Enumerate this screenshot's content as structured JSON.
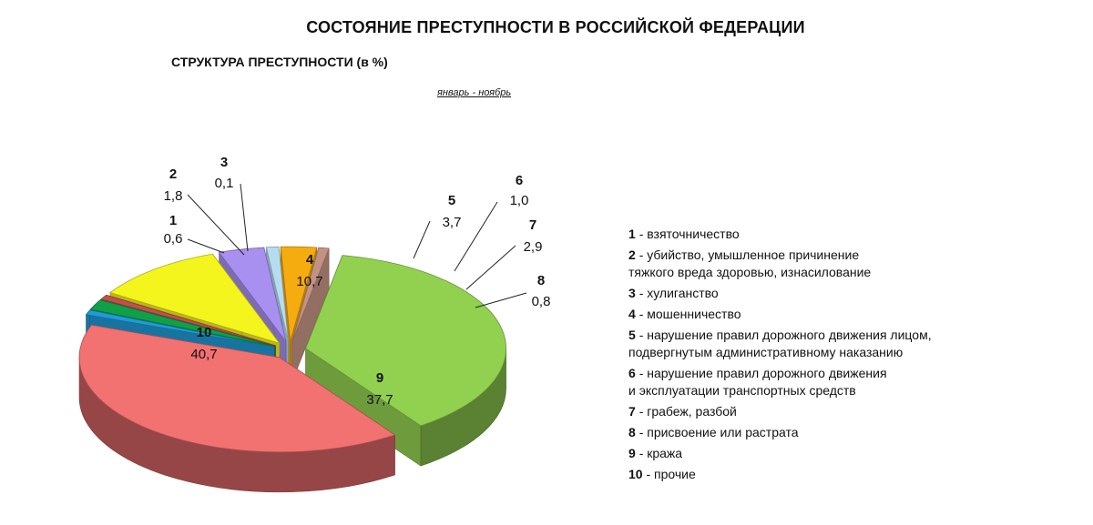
{
  "header": {
    "title": "СОСТОЯНИЕ ПРЕСТУПНОСТИ В РОССИЙСКОЙ ФЕДЕРАЦИИ",
    "subtitle": "СТРУКТУРА ПРЕСТУПНОСТИ (в %)",
    "period": "январь - ноябрь"
  },
  "chart_data": {
    "type": "pie",
    "title": "СТРУКТУРА ПРЕСТУПНОСТИ (в %)",
    "slices": [
      {
        "num": "1",
        "value": 0.6,
        "value_label": "0,6",
        "name": "взяточничество",
        "color": "#1f9bd7"
      },
      {
        "num": "2",
        "value": 1.8,
        "value_label": "1,8",
        "name": "убийство, умышленное причинение тяжкого вреда здоровью, изнасилование",
        "color": "#10a048"
      },
      {
        "num": "3",
        "value": 0.1,
        "value_label": "0,1",
        "name": "хулиганство",
        "color": "#c0504d"
      },
      {
        "num": "4",
        "value": 10.7,
        "value_label": "10,7",
        "name": "мошенничество",
        "color": "#f5f51e"
      },
      {
        "num": "5",
        "value": 3.7,
        "value_label": "3,7",
        "name": "нарушение правил дорожного движения лицом, подвергнутым административному наказанию",
        "color": "#a790f0"
      },
      {
        "num": "6",
        "value": 1.0,
        "value_label": "1,0",
        "name": "нарушение правил дорожного движения и эксплуатации транспортных средств",
        "color": "#b6dcef"
      },
      {
        "num": "7",
        "value": 2.9,
        "value_label": "2,9",
        "name": "грабеж, разбой",
        "color": "#f5ac0e"
      },
      {
        "num": "8",
        "value": 0.8,
        "value_label": "0,8",
        "name": "присвоение или растрата",
        "color": "#c49284"
      },
      {
        "num": "9",
        "value": 37.7,
        "value_label": "37,7",
        "name": "кража",
        "color": "#92d050"
      },
      {
        "num": "10",
        "value": 40.7,
        "value_label": "40,7",
        "name": "прочие",
        "color": "#f27171"
      }
    ]
  },
  "legend": [
    {
      "num": "1",
      "text": "- взяточничество"
    },
    {
      "num": "2",
      "text": "- убийство, умышленное причинение",
      "text2": "тяжкого вреда здоровью, изнасилование"
    },
    {
      "num": "3",
      "text": "- хулиганство"
    },
    {
      "num": "4",
      "text": "- мошенничество"
    },
    {
      "num": "5",
      "text": "- нарушение правил дорожного движения лицом,",
      "text2": "подвергнутым административному наказанию"
    },
    {
      "num": "6",
      "text": "- нарушение правил дорожного движения",
      "text2": "и эксплуатации транспортных средств"
    },
    {
      "num": "7",
      "text": "- грабеж, разбой"
    },
    {
      "num": "8",
      "text": "- присвоение или растрата"
    },
    {
      "num": "9",
      "text": "- кража"
    },
    {
      "num": "10",
      "text": "- прочие"
    }
  ]
}
